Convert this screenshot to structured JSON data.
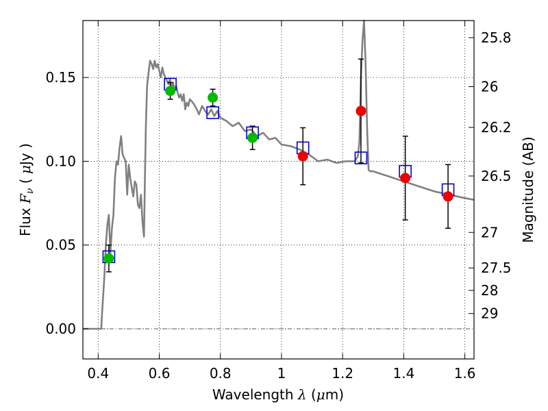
{
  "chart_data": {
    "type": "scatter",
    "xlabel": "Wavelength  λ (μm)",
    "ylabel": "Flux  F_ν  ( μJy )",
    "ylabel_parts": {
      "prefix": "Flux  ",
      "var": "F",
      "sub": "ν",
      "open": "  ( ",
      "mu": "μ",
      "unit": "Jy )"
    },
    "xlabel_parts": {
      "prefix": "Wavelength  ",
      "var": "λ",
      "open": " (",
      "mu": "μ",
      "unit": "m)"
    },
    "y2label": "Magnitude (AB)",
    "xlim": [
      0.35,
      1.63
    ],
    "ylim": [
      -0.018,
      0.184
    ],
    "x_ticks": [
      0.4,
      0.6,
      0.8,
      1.0,
      1.2,
      1.4,
      1.6
    ],
    "x_tick_labels": [
      "0.4",
      "0.6",
      "0.8",
      "1",
      "1.2",
      "1.4",
      "1.6"
    ],
    "y_ticks": [
      0.0,
      0.05,
      0.1,
      0.15
    ],
    "y_tick_labels": [
      "0.00",
      "0.05",
      "0.10",
      "0.15"
    ],
    "y2_ticks": [
      25.8,
      26,
      26.2,
      26.5,
      27,
      27.5,
      28,
      29
    ],
    "y2_tick_labels": [
      "25.8",
      "26",
      "26.2",
      "26.5",
      "27",
      "27.5",
      "28",
      "29"
    ],
    "grid": true,
    "colors": {
      "model": "#808080",
      "model_photometry": "#0000cc",
      "optical_points": "#00bb00",
      "nir_points": "#ee0000",
      "errorbar": "#000000",
      "zero_line": "#555555"
    },
    "model_spectrum": {
      "x": [
        0.35,
        0.41,
        0.413,
        0.42,
        0.425,
        0.43,
        0.435,
        0.44,
        0.445,
        0.45,
        0.455,
        0.46,
        0.465,
        0.47,
        0.475,
        0.48,
        0.485,
        0.49,
        0.495,
        0.5,
        0.505,
        0.51,
        0.515,
        0.52,
        0.525,
        0.53,
        0.535,
        0.54,
        0.545,
        0.55,
        0.553,
        0.556,
        0.56,
        0.565,
        0.57,
        0.575,
        0.58,
        0.585,
        0.59,
        0.595,
        0.6,
        0.605,
        0.61,
        0.615,
        0.62,
        0.625,
        0.63,
        0.635,
        0.64,
        0.645,
        0.65,
        0.655,
        0.66,
        0.665,
        0.67,
        0.675,
        0.68,
        0.685,
        0.69,
        0.695,
        0.7,
        0.71,
        0.72,
        0.73,
        0.74,
        0.75,
        0.76,
        0.77,
        0.78,
        0.79,
        0.8,
        0.82,
        0.84,
        0.86,
        0.88,
        0.9,
        0.92,
        0.94,
        0.96,
        0.98,
        1.0,
        1.03,
        1.06,
        1.09,
        1.12,
        1.15,
        1.18,
        1.21,
        1.24,
        1.25,
        1.255,
        1.26,
        1.265,
        1.27,
        1.275,
        1.28,
        1.285,
        1.29,
        1.3,
        1.35,
        1.4,
        1.45,
        1.5,
        1.55,
        1.6,
        1.63
      ],
      "y": [
        0.0,
        0.0,
        0.01,
        0.03,
        0.05,
        0.062,
        0.068,
        0.045,
        0.06,
        0.068,
        0.09,
        0.1,
        0.098,
        0.108,
        0.115,
        0.104,
        0.102,
        0.1,
        0.08,
        0.098,
        0.09,
        0.084,
        0.079,
        0.088,
        0.086,
        0.074,
        0.072,
        0.08,
        0.064,
        0.055,
        0.09,
        0.12,
        0.145,
        0.153,
        0.16,
        0.158,
        0.155,
        0.16,
        0.156,
        0.158,
        0.154,
        0.15,
        0.156,
        0.152,
        0.15,
        0.148,
        0.146,
        0.149,
        0.144,
        0.147,
        0.143,
        0.145,
        0.141,
        0.138,
        0.14,
        0.136,
        0.14,
        0.131,
        0.135,
        0.133,
        0.137,
        0.135,
        0.132,
        0.128,
        0.133,
        0.13,
        0.128,
        0.131,
        0.127,
        0.13,
        0.126,
        0.124,
        0.121,
        0.123,
        0.118,
        0.119,
        0.115,
        0.117,
        0.113,
        0.114,
        0.11,
        0.109,
        0.107,
        0.104,
        0.1,
        0.101,
        0.099,
        0.1,
        0.1,
        0.103,
        0.112,
        0.15,
        0.172,
        0.184,
        0.16,
        0.12,
        0.095,
        0.094,
        0.094,
        0.091,
        0.088,
        0.085,
        0.082,
        0.08,
        0.078,
        0.077
      ]
    },
    "model_photometry": {
      "x": [
        0.435,
        0.636,
        0.775,
        0.905,
        1.07,
        1.26,
        1.405,
        1.545
      ],
      "y": [
        0.043,
        0.146,
        0.129,
        0.117,
        0.108,
        0.102,
        0.094,
        0.083
      ]
    },
    "observed_optical": {
      "x": [
        0.435,
        0.636,
        0.775,
        0.905
      ],
      "y": [
        0.042,
        0.142,
        0.138,
        0.114
      ],
      "yerr": [
        0.008,
        0.005,
        0.005,
        0.007
      ]
    },
    "observed_nir": {
      "x": [
        1.07,
        1.26,
        1.405,
        1.545
      ],
      "y": [
        0.103,
        0.13,
        0.09,
        0.079
      ],
      "yerr": [
        0.017,
        0.031,
        0.025,
        0.019
      ]
    }
  }
}
